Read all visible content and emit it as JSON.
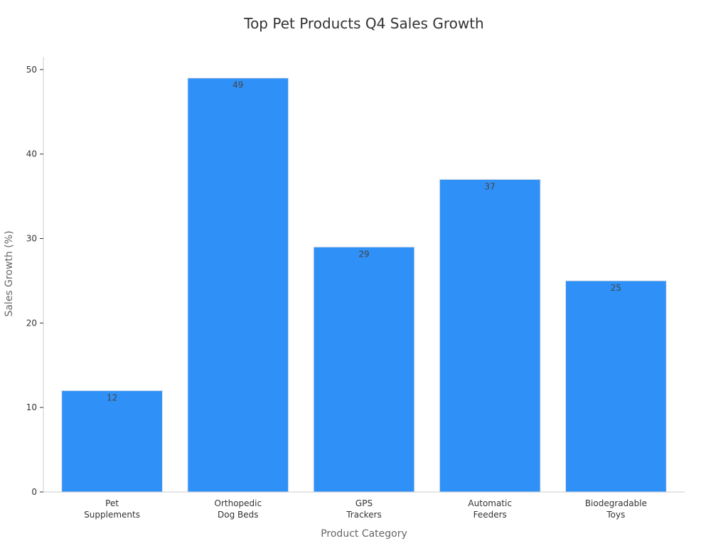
{
  "chart_data": {
    "type": "bar",
    "title": "Top Pet Products Q4 Sales Growth",
    "xlabel": "Product Category",
    "ylabel": "Sales Growth (%)",
    "categories": [
      [
        "Pet",
        "Supplements"
      ],
      [
        "Orthopedic",
        "Dog Beds"
      ],
      [
        "GPS",
        "Trackers"
      ],
      [
        "Automatic",
        "Feeders"
      ],
      [
        "Biodegradable",
        "Toys"
      ]
    ],
    "values": [
      12,
      49,
      29,
      37,
      25
    ],
    "data_labels": [
      "12",
      "49",
      "29",
      "37",
      "25"
    ],
    "yticks": [
      0,
      10,
      20,
      30,
      40,
      50
    ],
    "ylim": [
      0,
      51.5
    ],
    "grid": false,
    "legend": "none",
    "bar_color": "#2f91f7"
  }
}
